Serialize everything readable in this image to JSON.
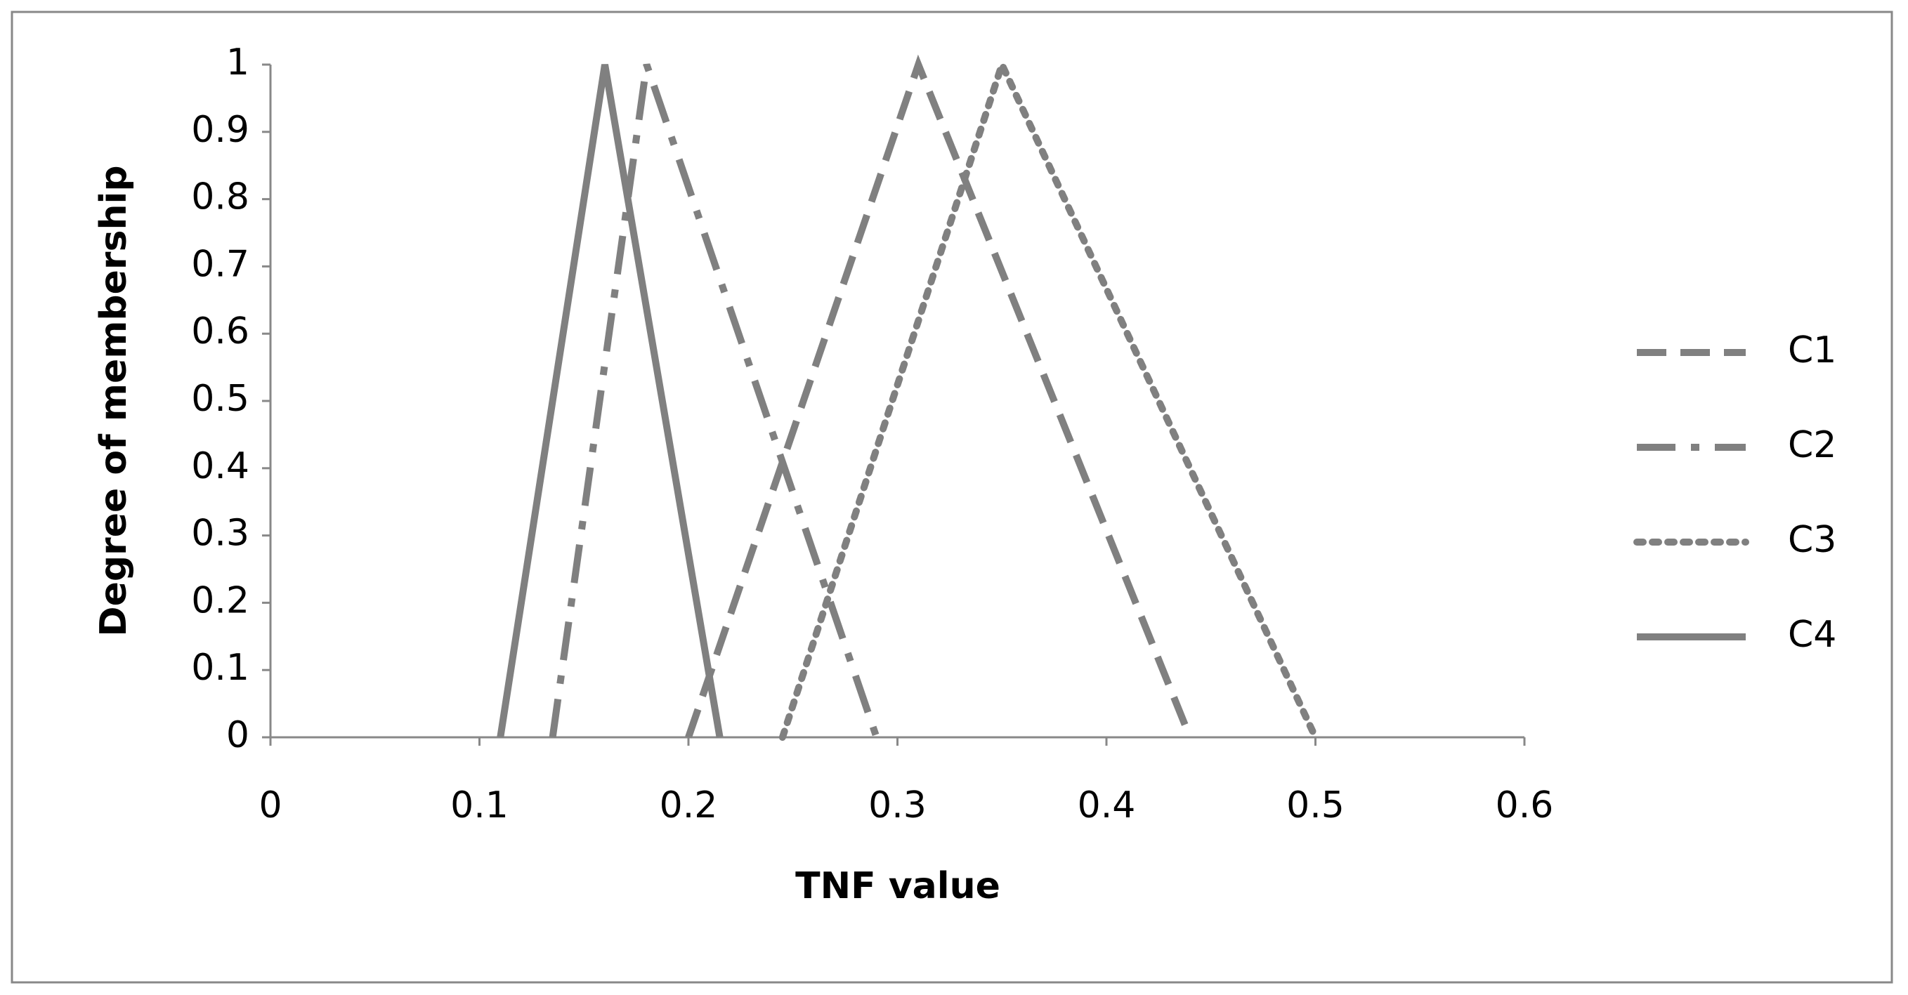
{
  "chart_data": {
    "type": "line",
    "x_label": "TNF value",
    "y_label": "Degree of membership",
    "xlim": [
      0,
      0.6
    ],
    "xticks": [
      0,
      0.1,
      0.2,
      0.3,
      0.4,
      0.5,
      0.6
    ],
    "ylim": [
      0,
      1
    ],
    "yticks": [
      0,
      0.1,
      0.2,
      0.3,
      0.4,
      0.5,
      0.6,
      0.7,
      0.8,
      0.9,
      1
    ],
    "grid": false,
    "legend": "right",
    "series": [
      {
        "name": "C1",
        "color": "#808080",
        "dash": "dashed",
        "x": [
          0.2,
          0.31,
          0.44
        ],
        "values": [
          0,
          1,
          0
        ]
      },
      {
        "name": "C2",
        "color": "#808080",
        "dash": "dashdot",
        "x": [
          0.135,
          0.18,
          0.29
        ],
        "values": [
          0,
          1,
          0
        ]
      },
      {
        "name": "C3",
        "color": "#808080",
        "dash": "dotted",
        "x": [
          0.245,
          0.35,
          0.5
        ],
        "values": [
          0,
          1,
          0
        ]
      },
      {
        "name": "C4",
        "color": "#808080",
        "dash": "solid",
        "x": [
          0.11,
          0.16,
          0.215
        ],
        "values": [
          0,
          1,
          0
        ]
      }
    ]
  }
}
